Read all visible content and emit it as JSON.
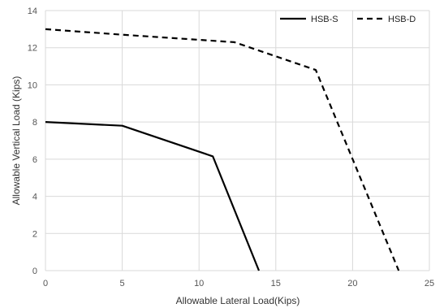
{
  "chart_data": {
    "type": "line",
    "title": "",
    "xlabel": "Allowable Lateral Load(Kips)",
    "ylabel": "Allowable Vertical Load (Kips)",
    "xlim": [
      0,
      25
    ],
    "ylim": [
      0,
      14
    ],
    "xticks": [
      0,
      5,
      10,
      15,
      20,
      25
    ],
    "yticks": [
      0,
      2,
      4,
      6,
      8,
      10,
      12,
      14
    ],
    "xtick_labels": [
      "0",
      "5",
      "10",
      "15",
      "20",
      "25"
    ],
    "ytick_labels": [
      "0",
      "2",
      "4",
      "6",
      "8",
      "10",
      "12",
      "14"
    ],
    "grid": true,
    "legend_position": "top-right",
    "series": [
      {
        "name": "HSB-S",
        "style": "solid",
        "color": "#000000",
        "x": [
          0,
          5,
          10.9,
          13.9
        ],
        "y": [
          8.0,
          7.8,
          6.15,
          0
        ]
      },
      {
        "name": "HSB-D",
        "style": "dashed",
        "color": "#000000",
        "x": [
          0,
          5,
          12.3,
          17.6,
          23.0
        ],
        "y": [
          13.0,
          12.7,
          12.3,
          10.8,
          0
        ]
      }
    ]
  }
}
